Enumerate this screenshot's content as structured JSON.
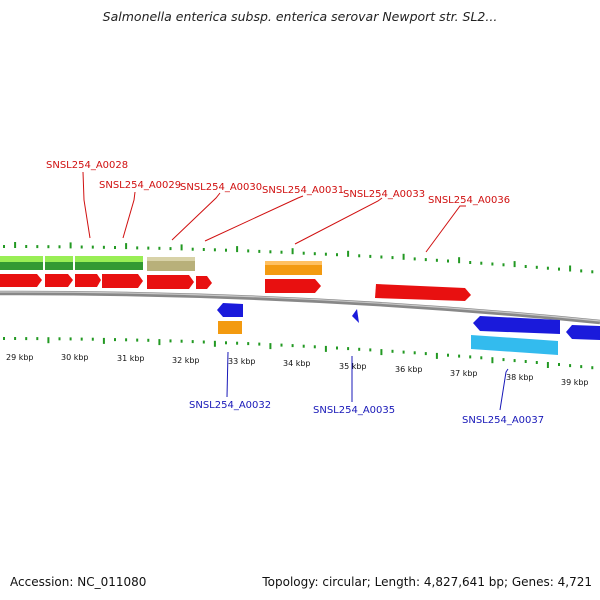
{
  "title": "Salmonella enterica subsp. enterica serovar Newport str. SL2...",
  "footer": {
    "accession": "Accession: NC_011080",
    "summary": "Topology: circular; Length: 4,827,641 bp; Genes: 4,721"
  },
  "colors": {
    "red": "#e81010",
    "light_green": "#99ee55",
    "dark_green": "#339933",
    "khaki": "#b8b07a",
    "orange": "#f39a10",
    "blue": "#1a1adb",
    "cyan": "#33bbee",
    "backbone": "#888888",
    "tick": "#229922",
    "label_red": "#d01010",
    "label_blue": "#1818b8"
  },
  "scale": {
    "labels": [
      "29 kbp",
      "30 kbp",
      "31 kbp",
      "32 kbp",
      "33 kbp",
      "34 kbp",
      "35 kbp",
      "36 kbp",
      "37 kbp",
      "38 kbp",
      "39 kbp"
    ]
  },
  "gene_labels_top": [
    "SNSL254_A0028",
    "SNSL254_A0029",
    "SNSL254_A0030",
    "SNSL254_A0031",
    "SNSL254_A0033",
    "SNSL254_A0036"
  ],
  "gene_labels_bottom": [
    "SNSL254_A0032",
    "SNSL254_A0035",
    "SNSL254_A0037"
  ]
}
